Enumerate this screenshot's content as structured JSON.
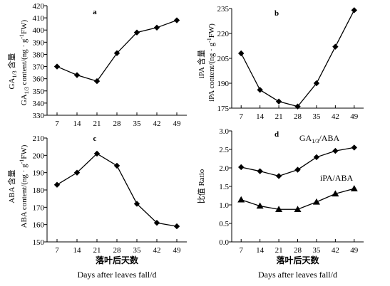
{
  "chart_data": [
    {
      "type": "line",
      "panel_label": "a",
      "x": [
        7,
        14,
        21,
        28,
        35,
        42,
        49
      ],
      "series": [
        {
          "marker": "diamond",
          "values": [
            370,
            363,
            358,
            381,
            398,
            402,
            408
          ]
        }
      ],
      "ylim": [
        330,
        420
      ],
      "yticks": [
        330,
        340,
        350,
        360,
        370,
        380,
        390,
        400,
        410,
        420
      ],
      "ylabel_line1": "GA1/3 含量",
      "ylabel_line2": "GA1/3 content/(ng · g-1FW)",
      "xticks": [
        7,
        14,
        21,
        28,
        35,
        42,
        49
      ],
      "xlabel_cn": "",
      "xlabel_en": ""
    },
    {
      "type": "line",
      "panel_label": "b",
      "x": [
        7,
        14,
        21,
        28,
        35,
        42,
        49
      ],
      "series": [
        {
          "marker": "diamond",
          "values": [
            208,
            186,
            179,
            176,
            190,
            212,
            234
          ]
        }
      ],
      "ylim": [
        175,
        235
      ],
      "yticks": [
        175,
        190,
        205,
        220,
        235
      ],
      "ylabel_line1": "iPA 含量",
      "ylabel_line2": "iPA content/(ng · g-1FW)",
      "xticks": [
        7,
        14,
        21,
        28,
        35,
        42,
        49
      ],
      "xlabel_cn": "",
      "xlabel_en": ""
    },
    {
      "type": "line",
      "panel_label": "c",
      "x": [
        7,
        14,
        21,
        28,
        35,
        42,
        49
      ],
      "series": [
        {
          "marker": "diamond",
          "values": [
            183,
            190,
            201,
            194,
            172,
            161,
            159
          ]
        }
      ],
      "ylim": [
        150,
        210
      ],
      "yticks": [
        150,
        160,
        170,
        180,
        190,
        200,
        210
      ],
      "ylabel_line1": "ABA 含量",
      "ylabel_line2": "ABA content/(ng · g-1FW)",
      "xticks": [
        7,
        14,
        21,
        28,
        35,
        42,
        49
      ],
      "xlabel_cn": "落叶后天数",
      "xlabel_en": "Days after leaves fall/d"
    },
    {
      "type": "line",
      "panel_label": "d",
      "x": [
        7,
        14,
        21,
        28,
        35,
        42,
        49
      ],
      "series": [
        {
          "name": "GA1/3/ABA",
          "marker": "diamond",
          "values": [
            2.02,
            1.91,
            1.78,
            1.95,
            2.29,
            2.46,
            2.55
          ]
        },
        {
          "name": "iPA/ABA",
          "marker": "triangle",
          "values": [
            1.14,
            0.97,
            0.88,
            0.88,
            1.08,
            1.3,
            1.44
          ]
        }
      ],
      "ylim": [
        0.0,
        3.0
      ],
      "yticks": [
        "0.0",
        "0.5",
        "1.0",
        "1.5",
        "2.0",
        "2.5",
        "3.0"
      ],
      "ylabel_line1": "比值",
      "ylabel_line2": "Ratio",
      "xticks": [
        7,
        14,
        21,
        28,
        35,
        42,
        49
      ],
      "xlabel_cn": "落叶后天数",
      "xlabel_en": "Days after leaves fall/d"
    }
  ]
}
